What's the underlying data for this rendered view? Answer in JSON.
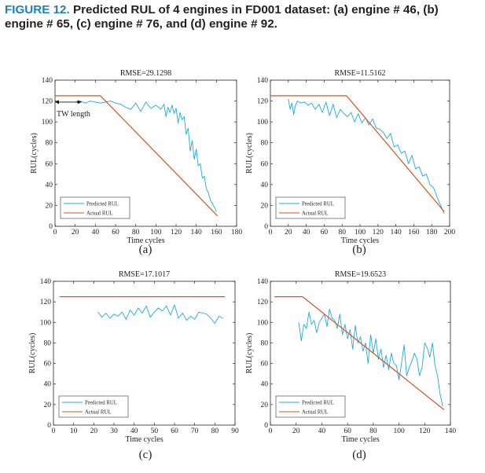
{
  "caption": {
    "label": "FIGURE 12.",
    "text": "Predicted RUL of 4 engines in FD001 dataset: (a) engine # 46, (b) engine # 65, (c) engine # 76, and (d) engine # 92."
  },
  "colors": {
    "predicted": "#1ea9e1",
    "actual": "#d9541a",
    "caption_label": "#1d7fc1"
  },
  "chart_data": [
    {
      "id": "a",
      "panel_label": "(a)",
      "type": "line",
      "title": "RMSE=29.1298",
      "xlabel": "Time cycles",
      "ylabel": "RUL(cycles)",
      "xlim": [
        0,
        180
      ],
      "ylim": [
        0,
        140
      ],
      "xticks": [
        0,
        20,
        40,
        60,
        80,
        100,
        120,
        140,
        160,
        180
      ],
      "yticks": [
        0,
        20,
        40,
        60,
        80,
        100,
        120,
        140
      ],
      "legend": {
        "position": "bottom-left",
        "entries": [
          "Predicted RUL",
          "Actual RUL"
        ]
      },
      "annotation": {
        "text": "TW length",
        "from_x": 0,
        "to_x": 20,
        "y": 119
      },
      "series": [
        {
          "name": "Predicted RUL",
          "x": [
            20,
            25,
            30,
            35,
            40,
            45,
            50,
            55,
            60,
            65,
            70,
            75,
            80,
            85,
            90,
            95,
            100,
            105,
            108,
            110,
            112,
            114,
            116,
            118,
            120,
            122,
            124,
            126,
            128,
            130,
            132,
            134,
            136,
            138,
            140,
            142,
            144,
            146,
            148,
            150,
            152,
            154,
            156,
            158,
            160
          ],
          "y": [
            119,
            120,
            118,
            120,
            119,
            118,
            119,
            120,
            118,
            117,
            114,
            112,
            118,
            110,
            119,
            113,
            116,
            112,
            117,
            105,
            114,
            109,
            116,
            108,
            113,
            99,
            109,
            102,
            105,
            88,
            94,
            72,
            82,
            64,
            74,
            58,
            60,
            46,
            48,
            36,
            32,
            25,
            22,
            18,
            14
          ]
        },
        {
          "name": "Actual RUL",
          "x": [
            0,
            45,
            161
          ],
          "y": [
            125,
            125,
            10
          ]
        }
      ]
    },
    {
      "id": "b",
      "panel_label": "(b)",
      "type": "line",
      "title": "RMSE=11.5162",
      "xlabel": "Time cycles",
      "ylabel": "RUL(cycles)",
      "xlim": [
        0,
        200
      ],
      "ylim": [
        0,
        140
      ],
      "xticks": [
        0,
        20,
        40,
        60,
        80,
        100,
        120,
        140,
        160,
        180,
        200
      ],
      "yticks": [
        0,
        20,
        40,
        60,
        80,
        100,
        120,
        140
      ],
      "legend": {
        "position": "bottom-left",
        "entries": [
          "Predicted RUL",
          "Actual RUL"
        ]
      },
      "series": [
        {
          "name": "Predicted RUL",
          "x": [
            20,
            22,
            24,
            26,
            28,
            30,
            34,
            38,
            42,
            46,
            50,
            54,
            58,
            62,
            66,
            70,
            74,
            78,
            82,
            86,
            90,
            94,
            98,
            102,
            106,
            110,
            114,
            118,
            122,
            126,
            130,
            134,
            138,
            142,
            146,
            150,
            154,
            158,
            162,
            166,
            170,
            174,
            178,
            182,
            186,
            190,
            194
          ],
          "y": [
            122,
            112,
            118,
            107,
            116,
            120,
            118,
            119,
            116,
            118,
            112,
            117,
            109,
            119,
            106,
            117,
            104,
            112,
            108,
            105,
            109,
            100,
            108,
            99,
            104,
            97,
            103,
            94,
            93,
            90,
            84,
            89,
            76,
            78,
            70,
            72,
            60,
            68,
            55,
            57,
            48,
            50,
            40,
            37,
            28,
            20,
            12
          ]
        },
        {
          "name": "Actual RUL",
          "x": [
            0,
            85,
            194
          ],
          "y": [
            125,
            125,
            14
          ]
        }
      ]
    },
    {
      "id": "c",
      "panel_label": "(c)",
      "type": "line",
      "title": "RMSE=17.1017",
      "xlabel": "Time cycles",
      "ylabel": "RUL(cycles)",
      "xlim": [
        0,
        90
      ],
      "ylim": [
        0,
        140
      ],
      "xticks": [
        0,
        10,
        20,
        30,
        40,
        50,
        60,
        70,
        80,
        90
      ],
      "yticks": [
        0,
        20,
        40,
        60,
        80,
        100,
        120,
        140
      ],
      "legend": {
        "position": "bottom-left",
        "entries": [
          "Predicted RUL",
          "Actual RUL"
        ]
      },
      "series": [
        {
          "name": "Predicted RUL",
          "x": [
            22,
            24,
            26,
            28,
            30,
            32,
            34,
            36,
            38,
            40,
            42,
            44,
            46,
            48,
            50,
            52,
            54,
            56,
            58,
            60,
            62,
            64,
            66,
            68,
            70,
            72,
            74,
            76,
            78,
            80,
            82,
            84
          ],
          "y": [
            110,
            105,
            109,
            104,
            108,
            106,
            110,
            103,
            112,
            107,
            114,
            109,
            116,
            105,
            110,
            114,
            111,
            116,
            107,
            117,
            104,
            109,
            102,
            106,
            103,
            110,
            109,
            108,
            104,
            99,
            106,
            104
          ]
        },
        {
          "name": "Actual RUL",
          "x": [
            3,
            85
          ],
          "y": [
            125,
            125
          ]
        }
      ]
    },
    {
      "id": "d",
      "panel_label": "(d)",
      "type": "line",
      "title": "RMSE=19.6523",
      "xlabel": "Time cycles",
      "ylabel": "RUL(cycles)",
      "xlim": [
        0,
        140
      ],
      "ylim": [
        0,
        140
      ],
      "xticks": [
        0,
        20,
        40,
        60,
        80,
        100,
        120,
        140
      ],
      "yticks": [
        0,
        20,
        40,
        60,
        80,
        100,
        120,
        140
      ],
      "legend": {
        "position": "bottom-left",
        "entries": [
          "Predicted RUL",
          "Actual RUL"
        ]
      },
      "series": [
        {
          "name": "Predicted RUL",
          "x": [
            22,
            24,
            26,
            28,
            30,
            32,
            34,
            36,
            38,
            40,
            42,
            44,
            46,
            48,
            50,
            52,
            54,
            56,
            58,
            60,
            62,
            64,
            66,
            68,
            70,
            72,
            74,
            76,
            78,
            80,
            82,
            84,
            86,
            88,
            90,
            92,
            94,
            96,
            98,
            100,
            102,
            104,
            106,
            108,
            110,
            112,
            114,
            116,
            118,
            120,
            122,
            124,
            126,
            128,
            130,
            132,
            134
          ],
          "y": [
            100,
            82,
            98,
            94,
            110,
            98,
            102,
            90,
            100,
            104,
            108,
            96,
            113,
            104,
            102,
            94,
            108,
            88,
            98,
            84,
            93,
            74,
            97,
            80,
            86,
            72,
            80,
            60,
            88,
            70,
            84,
            64,
            74,
            56,
            68,
            54,
            70,
            60,
            58,
            44,
            60,
            78,
            48,
            56,
            62,
            70,
            64,
            48,
            56,
            80,
            75,
            66,
            80,
            58,
            48,
            30,
            18
          ]
        },
        {
          "name": "Actual RUL",
          "x": [
            3,
            25,
            135
          ],
          "y": [
            125,
            125,
            15
          ]
        }
      ]
    }
  ]
}
